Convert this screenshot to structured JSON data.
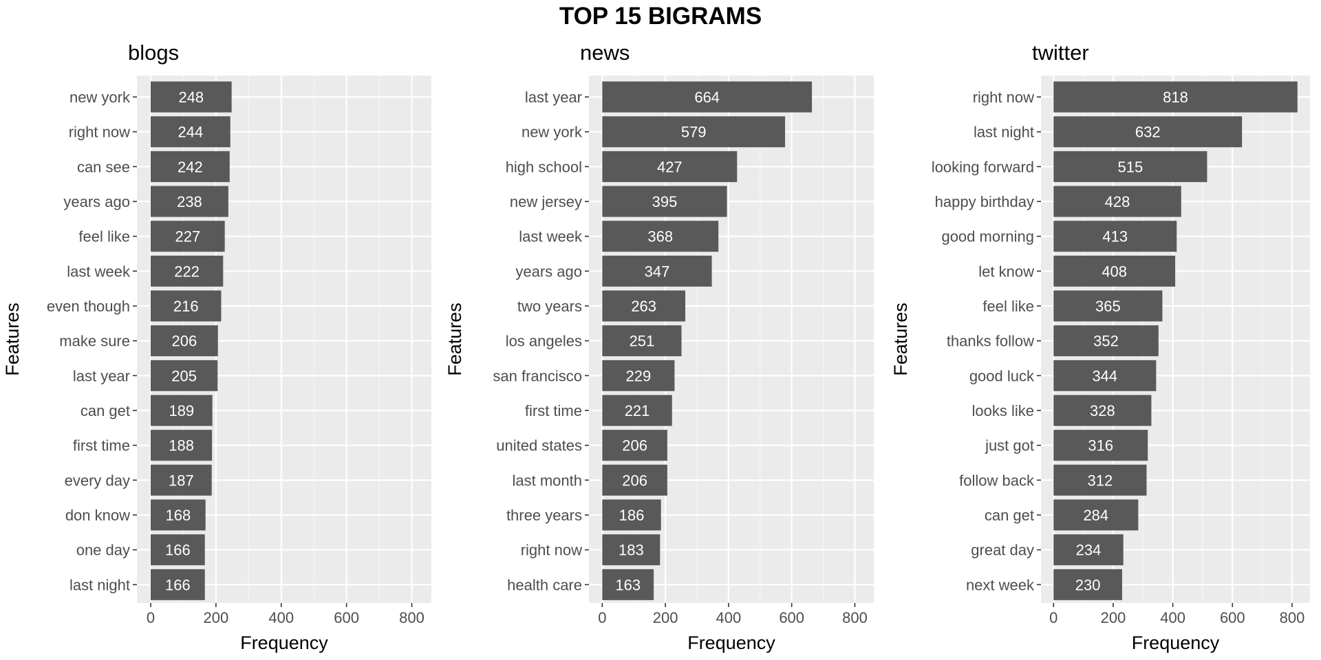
{
  "title": "TOP 15 BIGRAMS",
  "chart_data": [
    {
      "type": "bar",
      "orientation": "horizontal",
      "title": "blogs",
      "xlabel": "Frequency",
      "ylabel": "Features",
      "xlim": [
        0,
        860
      ],
      "xticks": [
        0,
        200,
        400,
        600,
        800
      ],
      "grid": true,
      "categories": [
        "new york",
        "right now",
        "can see",
        "years ago",
        "feel like",
        "last week",
        "even though",
        "make sure",
        "last year",
        "can get",
        "first time",
        "every day",
        "don know",
        "one day",
        "last night"
      ],
      "values": [
        248,
        244,
        242,
        238,
        227,
        222,
        216,
        206,
        205,
        189,
        188,
        187,
        168,
        166,
        166
      ]
    },
    {
      "type": "bar",
      "orientation": "horizontal",
      "title": "news",
      "xlabel": "Frequency",
      "ylabel": "Features",
      "xlim": [
        0,
        860
      ],
      "xticks": [
        0,
        200,
        400,
        600,
        800
      ],
      "grid": true,
      "categories": [
        "last year",
        "new york",
        "high school",
        "new jersey",
        "last week",
        "years ago",
        "two years",
        "los angeles",
        "san francisco",
        "first time",
        "united states",
        "last month",
        "three years",
        "right now",
        "health care"
      ],
      "values": [
        664,
        579,
        427,
        395,
        368,
        347,
        263,
        251,
        229,
        221,
        206,
        206,
        186,
        183,
        163
      ]
    },
    {
      "type": "bar",
      "orientation": "horizontal",
      "title": "twitter",
      "xlabel": "Frequency",
      "ylabel": "Features",
      "xlim": [
        0,
        860
      ],
      "xticks": [
        0,
        200,
        400,
        600,
        800
      ],
      "grid": true,
      "categories": [
        "right now",
        "last night",
        "looking forward",
        "happy birthday",
        "good morning",
        "let know",
        "feel like",
        "thanks follow",
        "good luck",
        "looks like",
        "just got",
        "follow back",
        "can get",
        "great day",
        "next week"
      ],
      "values": [
        818,
        632,
        515,
        428,
        413,
        408,
        365,
        352,
        344,
        328,
        316,
        312,
        284,
        234,
        230
      ]
    }
  ],
  "colors": {
    "panel_bg": "#ebebeb",
    "grid_major": "#ffffff",
    "grid_minor": "#f5f5f5",
    "bar": "#595959",
    "bar_label": "#ffffff",
    "tick_text": "#4d4d4d",
    "axis_title": "#000000"
  }
}
